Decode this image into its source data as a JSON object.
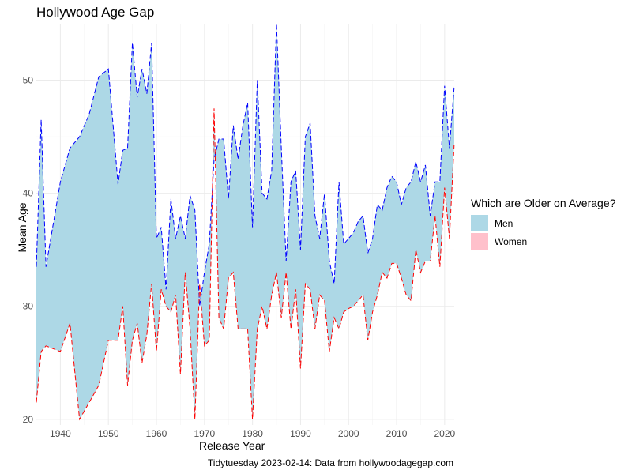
{
  "chart_data": {
    "type": "area",
    "title": "Hollywood Age Gap",
    "xlabel": "Release Year",
    "ylabel": "Mean Age",
    "caption": "Tidytuesday 2023-02-14: Data from hollywoodagegap.com",
    "xlim": [
      1935,
      2022
    ],
    "ylim": [
      19.5,
      55
    ],
    "x_ticks": [
      1940,
      1950,
      1960,
      1970,
      1980,
      1990,
      2000,
      2010,
      2020
    ],
    "y_ticks": [
      20,
      30,
      40,
      50
    ],
    "grid": true,
    "legend": {
      "title": "Which are Older on Average?",
      "position": "right",
      "entries": [
        {
          "label": "Men",
          "color": "#ADD8E6"
        },
        {
          "label": "Women",
          "color": "#FFC0CB"
        }
      ]
    },
    "fill_color": "#ADD8E6",
    "series": [
      {
        "name": "Men",
        "color": "#0000FF",
        "line": "dashed",
        "x": [
          1935,
          1936,
          1937,
          1940,
          1942,
          1944,
          1946,
          1948,
          1950,
          1952,
          1953,
          1954,
          1955,
          1956,
          1957,
          1958,
          1959,
          1960,
          1961,
          1962,
          1963,
          1964,
          1965,
          1966,
          1967,
          1968,
          1969,
          1970,
          1971,
          1972,
          1973,
          1974,
          1975,
          1976,
          1977,
          1978,
          1979,
          1980,
          1981,
          1982,
          1983,
          1984,
          1985,
          1986,
          1987,
          1988,
          1989,
          1990,
          1991,
          1992,
          1993,
          1994,
          1995,
          1996,
          1997,
          1998,
          1999,
          2000,
          2001,
          2002,
          2003,
          2004,
          2005,
          2006,
          2007,
          2008,
          2009,
          2010,
          2011,
          2012,
          2013,
          2014,
          2015,
          2016,
          2017,
          2018,
          2019,
          2020,
          2021,
          2022
        ],
        "values": [
          33.5,
          46.5,
          33.5,
          41,
          44,
          45,
          47,
          50.3,
          51,
          40.8,
          43.8,
          44,
          53.3,
          48.5,
          51,
          48.8,
          53.3,
          36,
          37,
          31.5,
          39.5,
          36,
          38,
          36,
          39.8,
          38.5,
          30,
          33,
          35.5,
          43,
          44.8,
          44.8,
          39.5,
          46,
          43,
          46,
          48,
          37,
          50,
          40,
          39.5,
          42,
          55,
          44,
          34,
          41,
          42,
          35,
          45,
          46.2,
          38,
          36,
          40,
          34,
          32,
          41,
          35.5,
          36,
          36.5,
          37.5,
          38,
          34.7,
          36,
          39,
          38.5,
          40.5,
          41.5,
          41,
          39,
          40.5,
          41,
          42.8,
          41,
          42.5,
          38,
          41,
          41,
          49.5,
          44,
          49.5
        ]
      },
      {
        "name": "Women",
        "color": "#FF0000",
        "line": "dashed",
        "x": [
          1935,
          1936,
          1937,
          1940,
          1942,
          1944,
          1946,
          1948,
          1950,
          1952,
          1953,
          1954,
          1955,
          1956,
          1957,
          1958,
          1959,
          1960,
          1961,
          1962,
          1963,
          1964,
          1965,
          1966,
          1967,
          1968,
          1969,
          1970,
          1971,
          1972,
          1973,
          1974,
          1975,
          1976,
          1977,
          1978,
          1979,
          1980,
          1981,
          1982,
          1983,
          1984,
          1985,
          1986,
          1987,
          1988,
          1989,
          1990,
          1991,
          1992,
          1993,
          1994,
          1995,
          1996,
          1997,
          1998,
          1999,
          2000,
          2001,
          2002,
          2003,
          2004,
          2005,
          2006,
          2007,
          2008,
          2009,
          2010,
          2011,
          2012,
          2013,
          2014,
          2015,
          2016,
          2017,
          2018,
          2019,
          2020,
          2021,
          2022
        ],
        "values": [
          21.5,
          26,
          26.5,
          26,
          28.5,
          20,
          21.5,
          23,
          27,
          27,
          30,
          23,
          27,
          28.5,
          25,
          27.5,
          32,
          26,
          31.5,
          30,
          29.5,
          31,
          24,
          33,
          28,
          20,
          32,
          26.5,
          27,
          47.5,
          29,
          28,
          32.5,
          33,
          28,
          28,
          28,
          20,
          28,
          30,
          28,
          31,
          33,
          29,
          33,
          28,
          31.5,
          24.5,
          32,
          31.5,
          28,
          31,
          30.5,
          26,
          29,
          28,
          29.5,
          29.8,
          30,
          30.5,
          31,
          27,
          29.5,
          31,
          33,
          32.5,
          33.8,
          33.8,
          32.5,
          31,
          30.5,
          35,
          33,
          34,
          34,
          38,
          33.5,
          40.5,
          36,
          44.5
        ]
      }
    ]
  }
}
